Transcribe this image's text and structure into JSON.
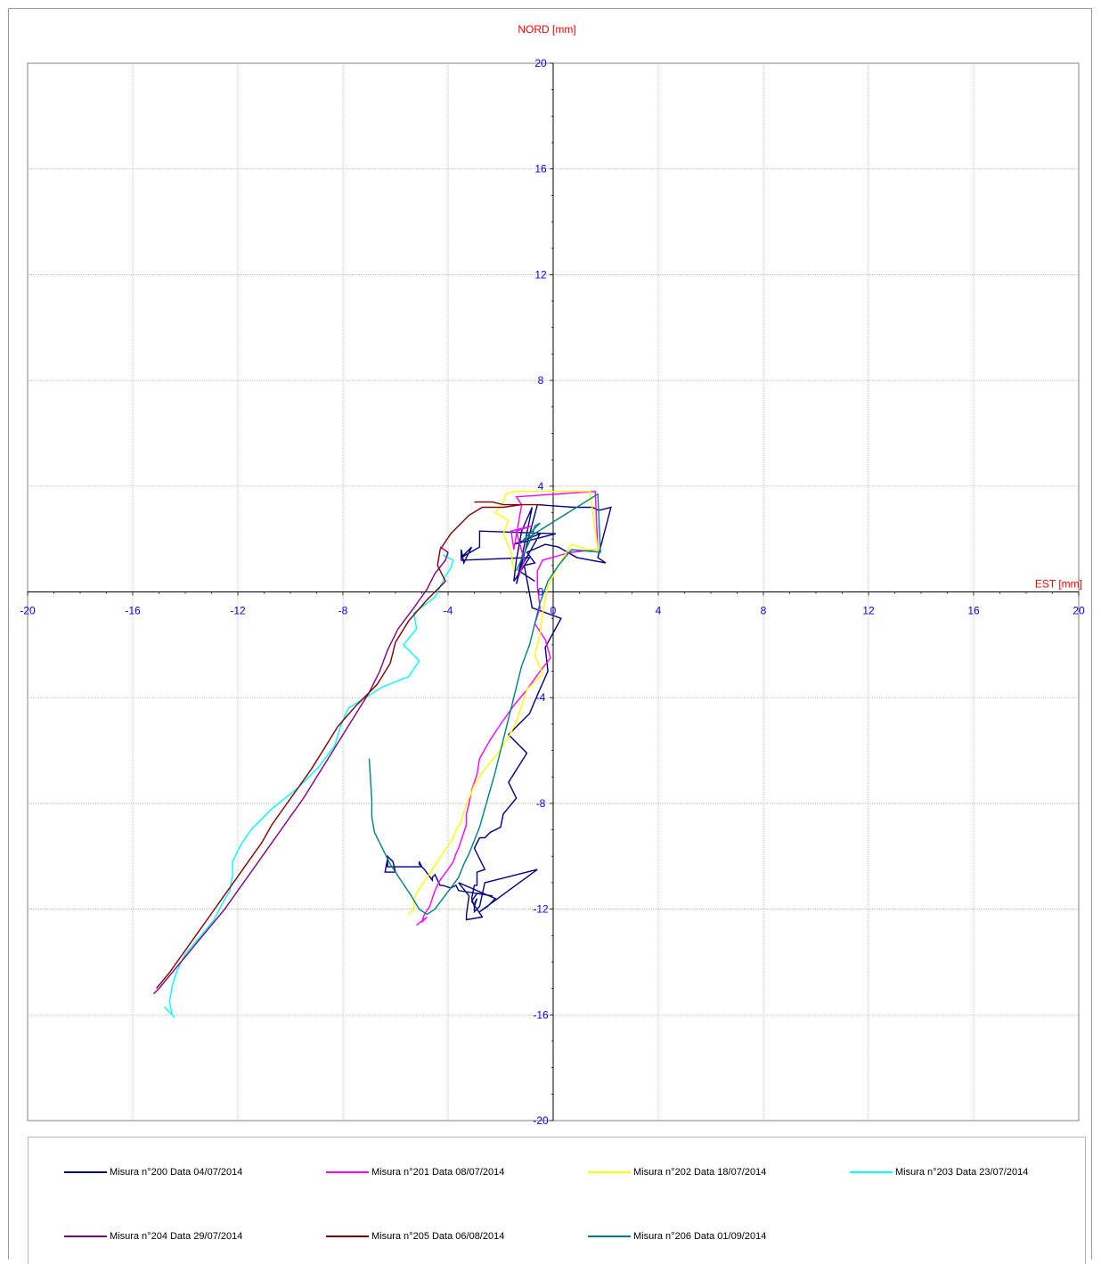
{
  "chart_data": {
    "type": "line",
    "title": "",
    "xlabel": "EST [mm]",
    "ylabel": "NORD  [mm]",
    "xlim": [
      -20,
      20
    ],
    "ylim": [
      -20,
      20
    ],
    "grid": true,
    "legend_position": "bottom",
    "label_color": "#ff0000",
    "tick_color": "#0000ff",
    "x_ticks": [
      "-20",
      "-16",
      "-12",
      "-8",
      "-4",
      "0",
      "4",
      "8",
      "12",
      "16",
      "20"
    ],
    "y_ticks": [
      "20",
      "16",
      "12",
      "8",
      "4",
      "0",
      "-4",
      "-8",
      "-12",
      "-16",
      "-20"
    ],
    "series": [
      {
        "name": "Misura n°200 Data 04/07/2014",
        "color": "#000080",
        "x": [
          -0.7,
          -1.3,
          -0.5,
          -1.5,
          0.1,
          -2.8,
          -2.8,
          -3.5,
          -3.1,
          -3.4,
          -3.5,
          -3.5,
          -0.9,
          -1.5,
          -1.4,
          -1.2,
          -0.8,
          -1.4,
          -0.6,
          0.8,
          1.3,
          1.5,
          1.7,
          1.8,
          2.2,
          1.7,
          2.0,
          0.9,
          0.2,
          -0.3,
          -1.0,
          -0.7,
          -1.1,
          -0.8,
          0.3,
          -0.3,
          -0.2,
          -0.6,
          -0.9,
          -1.7,
          -1.0,
          -1.7,
          -1.4,
          -1.9,
          -2.0,
          -2.4,
          -2.6,
          -2.8,
          -3.0,
          -2.6,
          -2.9,
          -2.9,
          -3.0,
          -3.1,
          -3.0,
          -2.9,
          -3.0,
          -3.0,
          -2.8,
          -2.6,
          -0.6,
          -2.8,
          -2.5,
          -2.2,
          -3.6,
          -3.2,
          -3.3,
          -3.3,
          -2.7,
          -3.1,
          -2.9,
          -2.3,
          -3.6,
          -3.7,
          -3.9,
          -4.2,
          -4.3,
          -4.5,
          -4.6,
          -4.6,
          -4.9,
          -5.1,
          -5.1,
          -5.0,
          -6.3,
          -6.3,
          -6.1,
          -6.0,
          -6.4,
          -6.3
        ],
        "y": [
          0.4,
          0.8,
          2.2,
          1.8,
          2.2,
          2.3,
          1.7,
          1.3,
          1.7,
          1.1,
          1.6,
          1.2,
          1.3,
          0.4,
          1.2,
          2.3,
          3.2,
          0.3,
          3.3,
          3.2,
          3.2,
          3.2,
          3.1,
          3.1,
          3.2,
          1.3,
          1.1,
          1.3,
          1.7,
          1.8,
          1.5,
          1.1,
          1.0,
          -0.6,
          -1.0,
          -2.1,
          -3.0,
          -3.9,
          -4.6,
          -5.4,
          -6.1,
          -7.2,
          -7.8,
          -8.4,
          -8.9,
          -9.1,
          -9.3,
          -9.3,
          -9.7,
          -10.5,
          -10.6,
          -11.1,
          -11.1,
          -11.6,
          -11.9,
          -11.6,
          -11.8,
          -12.1,
          -11.9,
          -11.0,
          -10.5,
          -12.1,
          -11.9,
          -11.6,
          -11.0,
          -11.5,
          -12.2,
          -12.4,
          -12.3,
          -11.7,
          -11.4,
          -11.5,
          -11.3,
          -11.1,
          -11.2,
          -11.1,
          -11.1,
          -10.7,
          -10.8,
          -10.9,
          -10.5,
          -10.3,
          -10.2,
          -10.4,
          -10.4,
          -10.0,
          -10.2,
          -10.6,
          -10.6,
          -10.1
        ]
      },
      {
        "name": "Misura n°201 Data 08/07/2014",
        "color": "#ff00ff",
        "x": [
          -1.3,
          -1.1,
          -1.4,
          -0.8,
          -1.6,
          -1.5,
          -1.2,
          -1.4,
          1.6,
          1.7,
          0.7,
          0.3,
          -0.4,
          -0.6,
          -0.6,
          -0.5,
          -0.7,
          -0.3,
          -0.1,
          -0.5,
          -1.0,
          -1.5,
          -2.0,
          -2.4,
          -2.8,
          -2.9,
          -3.1,
          -3.2,
          -3.3,
          -3.3,
          -3.4,
          -3.5,
          -3.6,
          -3.7,
          -3.8,
          -4.0,
          -4.3,
          -4.5,
          -4.6,
          -4.7,
          -4.9,
          -5.0,
          -4.8,
          -5.2
        ],
        "y": [
          0.6,
          1.2,
          2.3,
          2.5,
          2.3,
          1.6,
          3.3,
          3.6,
          3.8,
          1.6,
          1.5,
          1.4,
          1.2,
          0.8,
          0.2,
          -0.6,
          -1.2,
          -1.8,
          -2.5,
          -3.0,
          -3.7,
          -4.3,
          -5.0,
          -5.6,
          -6.3,
          -6.9,
          -7.5,
          -8.0,
          -8.4,
          -8.8,
          -9.1,
          -9.4,
          -9.7,
          -9.9,
          -10.2,
          -10.5,
          -10.9,
          -11.3,
          -11.6,
          -11.9,
          -12.2,
          -12.5,
          -12.3,
          -12.6
        ]
      },
      {
        "name": "Misura n°202 Data 18/07/2014",
        "color": "#ffff00",
        "x": [
          -1.5,
          -1.6,
          -1.9,
          -1.7,
          -2.2,
          -1.9,
          -1.8,
          -1.5,
          -1.4,
          1.4,
          1.7,
          1.3,
          0.7,
          0.2,
          -0.2,
          -0.4,
          -0.5,
          -0.7,
          -0.4,
          -1.0,
          -1.2,
          -1.4,
          -1.7,
          -2.1,
          -2.6,
          -3.0,
          -3.2,
          -3.4,
          -3.5,
          -3.7,
          -3.8,
          -4.0,
          -4.2,
          -4.4,
          -4.6,
          -4.8,
          -5.0,
          -5.2,
          -5.3,
          -5.3,
          -5.5
        ],
        "y": [
          0.8,
          1.5,
          2.2,
          2.7,
          3.0,
          3.4,
          3.7,
          3.8,
          3.8,
          3.8,
          1.6,
          1.6,
          1.8,
          1.0,
          0.2,
          -0.8,
          -1.6,
          -2.4,
          -3.1,
          -3.7,
          -4.3,
          -4.9,
          -5.5,
          -6.1,
          -6.7,
          -7.3,
          -7.8,
          -8.3,
          -8.7,
          -9.0,
          -9.3,
          -9.6,
          -9.9,
          -10.2,
          -10.5,
          -10.8,
          -11.1,
          -11.4,
          -11.7,
          -12.0,
          -12.2
        ]
      },
      {
        "name": "Misura n°203 Data 23/07/2014",
        "color": "#00ffff",
        "x": [
          -4.2,
          -3.8,
          -3.9,
          -4.1,
          -4.3,
          -4.5,
          -5.3,
          -5.2,
          -5.7,
          -5.1,
          -5.5,
          -6.5,
          -7.8,
          -8.1,
          -8.3,
          -8.9,
          -9.7,
          -10.7,
          -11.5,
          -11.9,
          -12.2,
          -12.2,
          -12.3,
          -12.6,
          -12.9,
          -13.4,
          -14.0,
          -14.3,
          -14.5,
          -14.6,
          -14.5,
          -14.4,
          -14.8
        ],
        "y": [
          1.4,
          1.2,
          0.9,
          0.6,
          0.2,
          -0.2,
          -0.8,
          -1.4,
          -2.0,
          -2.6,
          -3.2,
          -3.6,
          -4.4,
          -5.1,
          -5.8,
          -6.6,
          -7.4,
          -8.2,
          -9.0,
          -9.6,
          -10.2,
          -10.7,
          -11.3,
          -11.8,
          -12.4,
          -13.0,
          -13.7,
          -14.3,
          -14.9,
          -15.5,
          -16.0,
          -16.1,
          -15.7
        ]
      },
      {
        "name": "Misura n°204 Data 29/07/2014",
        "color": "#800080",
        "x": [
          -4.3,
          -4.0,
          -4.1,
          -4.5,
          -4.8,
          -5.3,
          -5.9,
          -6.3,
          -6.6,
          -7.0,
          -7.5,
          -8.0,
          -8.5,
          -9.0,
          -9.5,
          -10.0,
          -10.5,
          -11.0,
          -11.5,
          -12.0,
          -12.5,
          -13.0,
          -13.5,
          -14.0,
          -14.5,
          -15.0,
          -15.2
        ],
        "y": [
          1.7,
          1.5,
          1.2,
          0.7,
          0.1,
          -0.6,
          -1.4,
          -2.2,
          -3.0,
          -3.8,
          -4.6,
          -5.4,
          -6.2,
          -7.0,
          -7.8,
          -8.5,
          -9.2,
          -9.9,
          -10.6,
          -11.3,
          -12.0,
          -12.6,
          -13.2,
          -13.8,
          -14.4,
          -15.0,
          -15.2
        ]
      },
      {
        "name": "Misura n°205 Data 06/08/2014",
        "color": "#800000",
        "x": [
          -3.0,
          -2.6,
          -2.3,
          -1.9,
          -1.5,
          -1.0,
          -0.4,
          -1.2,
          -1.9,
          -2.7,
          -3.2,
          -3.9,
          -4.3,
          -4.4,
          -4.1,
          -4.8,
          -5.5,
          -6.0,
          -6.2,
          -6.7,
          -7.5,
          -8.2,
          -8.7,
          -9.2,
          -9.7,
          -10.2,
          -10.7,
          -11.1,
          -11.6,
          -12.1,
          -12.6,
          -13.1,
          -13.6,
          -14.1,
          -14.6,
          -15.1
        ],
        "y": [
          3.4,
          3.4,
          3.4,
          3.3,
          3.3,
          3.3,
          3.3,
          3.3,
          3.2,
          3.2,
          2.9,
          2.2,
          1.6,
          1.0,
          0.4,
          -0.3,
          -1.1,
          -1.9,
          -2.7,
          -3.5,
          -4.3,
          -5.1,
          -5.9,
          -6.7,
          -7.4,
          -8.1,
          -8.8,
          -9.5,
          -10.2,
          -10.9,
          -11.6,
          -12.3,
          -13.0,
          -13.7,
          -14.4,
          -15.0
        ]
      },
      {
        "name": "Misura n°206 Data 01/09/2014",
        "color": "#008080",
        "x": [
          -1.4,
          -1.0,
          -0.8,
          -0.7,
          -0.5,
          -1.2,
          1.7,
          1.8,
          0.7,
          0.2,
          -0.2,
          -0.5,
          -0.7,
          -0.9,
          -1.2,
          -1.4,
          -1.6,
          -1.8,
          -2.0,
          -2.2,
          -2.4,
          -2.6,
          -2.8,
          -3.0,
          -3.2,
          -3.4,
          -3.6,
          -3.9,
          -4.2,
          -4.5,
          -4.8,
          -5.1,
          -5.4,
          -5.8,
          -6.2,
          -6.5,
          -6.8,
          -6.9,
          -6.9,
          -7.0
        ],
        "y": [
          0.8,
          1.7,
          2.1,
          2.5,
          2.6,
          1.9,
          3.7,
          1.5,
          1.6,
          1.0,
          0.4,
          -0.4,
          -1.2,
          -2.0,
          -2.8,
          -3.6,
          -4.4,
          -5.2,
          -6.0,
          -6.8,
          -7.5,
          -8.2,
          -8.9,
          -9.4,
          -9.9,
          -10.3,
          -10.8,
          -11.2,
          -11.6,
          -12.0,
          -12.2,
          -12.0,
          -11.5,
          -10.9,
          -10.3,
          -9.7,
          -9.1,
          -8.5,
          -7.9,
          -6.3
        ]
      }
    ]
  }
}
